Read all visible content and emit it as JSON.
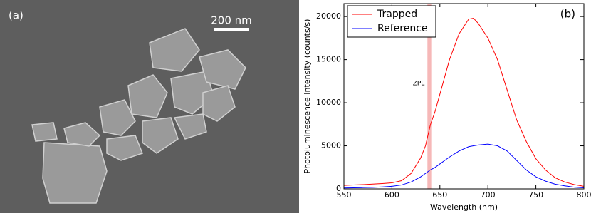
{
  "panel_a": {
    "label": "(a)",
    "scale_bar": "200 nm"
  },
  "chart_data": {
    "type": "line",
    "panel_label": "(b)",
    "xlabel": "Wavelength (nm)",
    "ylabel": "Photoluminescence Intensity (counts/s)",
    "annotation": "ZPL",
    "zpl_band": [
      637,
      641
    ],
    "zpl_color": "#f6b8b8",
    "x": [
      550,
      560,
      570,
      580,
      590,
      600,
      610,
      620,
      630,
      635,
      640,
      645,
      650,
      660,
      670,
      680,
      685,
      690,
      700,
      710,
      720,
      730,
      740,
      750,
      760,
      770,
      780,
      790,
      800
    ],
    "series": [
      {
        "name": "Trapped",
        "color": "#ff0000",
        "values": [
          400,
          450,
          500,
          560,
          620,
          700,
          950,
          1800,
          3600,
          5000,
          7400,
          9000,
          11000,
          15000,
          18000,
          19700,
          19800,
          19200,
          17500,
          15000,
          11500,
          8000,
          5500,
          3500,
          2200,
          1300,
          800,
          500,
          300
        ]
      },
      {
        "name": "Reference",
        "color": "#0000ff",
        "values": [
          100,
          120,
          150,
          180,
          230,
          300,
          450,
          800,
          1400,
          1800,
          2200,
          2500,
          2900,
          3700,
          4400,
          4900,
          5000,
          5100,
          5200,
          5000,
          4400,
          3300,
          2200,
          1400,
          900,
          550,
          350,
          200,
          120
        ]
      }
    ],
    "xlim": [
      550,
      800
    ],
    "ylim": [
      0,
      21500
    ],
    "xticks": [
      550,
      600,
      650,
      700,
      750,
      800
    ],
    "yticks": [
      0,
      5000,
      10000,
      15000,
      20000
    ],
    "legend": "upper left"
  }
}
